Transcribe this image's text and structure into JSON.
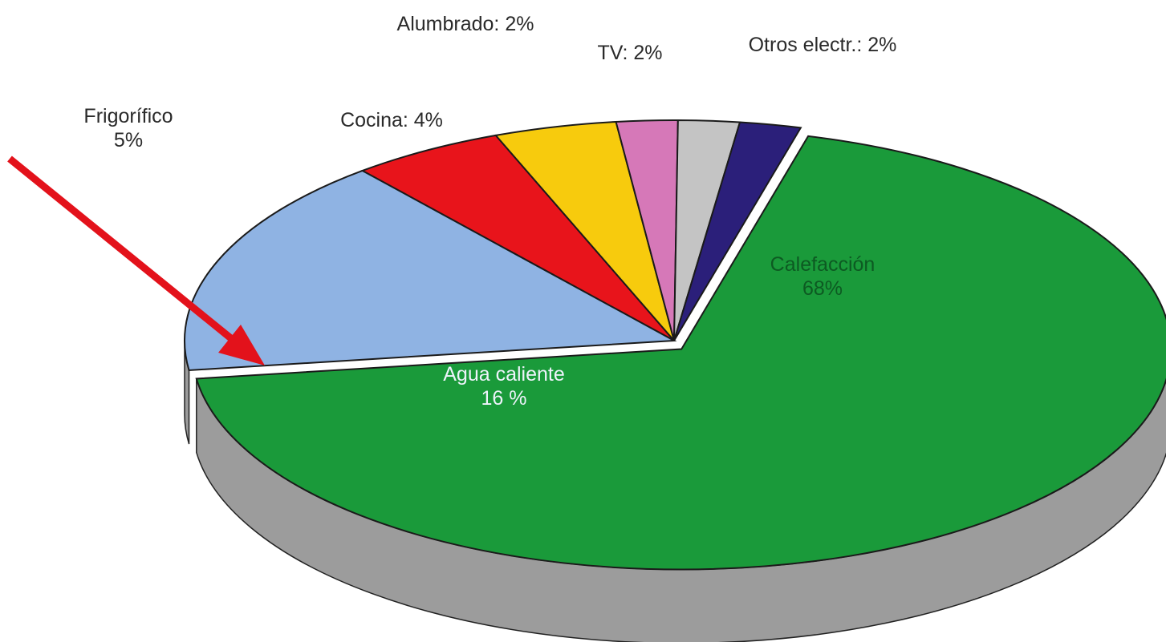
{
  "chart_data": {
    "type": "pie",
    "values": [
      5,
      4,
      2,
      2,
      2,
      68,
      16
    ],
    "value_labels": [
      "Frigorífico\n5%",
      "Cocina: 4%",
      "Alumbrado: 2%",
      "TV: 2%",
      "Otros electr.: 2%",
      "Calefacción\n68%",
      "Agua caliente\n16 %"
    ],
    "colors": [
      "#e8141b",
      "#f7cb0d",
      "#d678b8",
      "#c4c4c4",
      "#2b1f7a",
      "#1a9a3a",
      "#8fb3e3"
    ]
  }
}
